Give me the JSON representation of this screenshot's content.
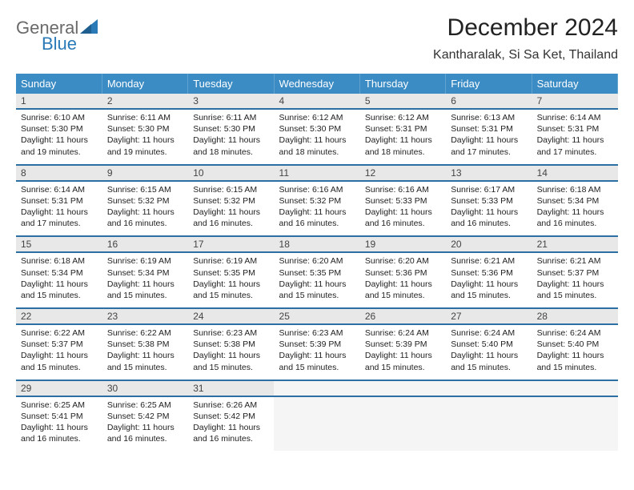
{
  "logo": {
    "general": "General",
    "blue": "Blue",
    "sail_color": "#2a7ab8"
  },
  "title": "December 2024",
  "location": "Kantharalak, Si Sa Ket, Thailand",
  "header_bg": "#3b8bc4",
  "rule_color": "#2b6fa3",
  "daynum_bg": "#e8e8e8",
  "weekdays": [
    "Sunday",
    "Monday",
    "Tuesday",
    "Wednesday",
    "Thursday",
    "Friday",
    "Saturday"
  ],
  "weeks": [
    [
      {
        "day": "1",
        "sunrise": "Sunrise: 6:10 AM",
        "sunset": "Sunset: 5:30 PM",
        "daylight": "Daylight: 11 hours and 19 minutes."
      },
      {
        "day": "2",
        "sunrise": "Sunrise: 6:11 AM",
        "sunset": "Sunset: 5:30 PM",
        "daylight": "Daylight: 11 hours and 19 minutes."
      },
      {
        "day": "3",
        "sunrise": "Sunrise: 6:11 AM",
        "sunset": "Sunset: 5:30 PM",
        "daylight": "Daylight: 11 hours and 18 minutes."
      },
      {
        "day": "4",
        "sunrise": "Sunrise: 6:12 AM",
        "sunset": "Sunset: 5:30 PM",
        "daylight": "Daylight: 11 hours and 18 minutes."
      },
      {
        "day": "5",
        "sunrise": "Sunrise: 6:12 AM",
        "sunset": "Sunset: 5:31 PM",
        "daylight": "Daylight: 11 hours and 18 minutes."
      },
      {
        "day": "6",
        "sunrise": "Sunrise: 6:13 AM",
        "sunset": "Sunset: 5:31 PM",
        "daylight": "Daylight: 11 hours and 17 minutes."
      },
      {
        "day": "7",
        "sunrise": "Sunrise: 6:14 AM",
        "sunset": "Sunset: 5:31 PM",
        "daylight": "Daylight: 11 hours and 17 minutes."
      }
    ],
    [
      {
        "day": "8",
        "sunrise": "Sunrise: 6:14 AM",
        "sunset": "Sunset: 5:31 PM",
        "daylight": "Daylight: 11 hours and 17 minutes."
      },
      {
        "day": "9",
        "sunrise": "Sunrise: 6:15 AM",
        "sunset": "Sunset: 5:32 PM",
        "daylight": "Daylight: 11 hours and 16 minutes."
      },
      {
        "day": "10",
        "sunrise": "Sunrise: 6:15 AM",
        "sunset": "Sunset: 5:32 PM",
        "daylight": "Daylight: 11 hours and 16 minutes."
      },
      {
        "day": "11",
        "sunrise": "Sunrise: 6:16 AM",
        "sunset": "Sunset: 5:32 PM",
        "daylight": "Daylight: 11 hours and 16 minutes."
      },
      {
        "day": "12",
        "sunrise": "Sunrise: 6:16 AM",
        "sunset": "Sunset: 5:33 PM",
        "daylight": "Daylight: 11 hours and 16 minutes."
      },
      {
        "day": "13",
        "sunrise": "Sunrise: 6:17 AM",
        "sunset": "Sunset: 5:33 PM",
        "daylight": "Daylight: 11 hours and 16 minutes."
      },
      {
        "day": "14",
        "sunrise": "Sunrise: 6:18 AM",
        "sunset": "Sunset: 5:34 PM",
        "daylight": "Daylight: 11 hours and 16 minutes."
      }
    ],
    [
      {
        "day": "15",
        "sunrise": "Sunrise: 6:18 AM",
        "sunset": "Sunset: 5:34 PM",
        "daylight": "Daylight: 11 hours and 15 minutes."
      },
      {
        "day": "16",
        "sunrise": "Sunrise: 6:19 AM",
        "sunset": "Sunset: 5:34 PM",
        "daylight": "Daylight: 11 hours and 15 minutes."
      },
      {
        "day": "17",
        "sunrise": "Sunrise: 6:19 AM",
        "sunset": "Sunset: 5:35 PM",
        "daylight": "Daylight: 11 hours and 15 minutes."
      },
      {
        "day": "18",
        "sunrise": "Sunrise: 6:20 AM",
        "sunset": "Sunset: 5:35 PM",
        "daylight": "Daylight: 11 hours and 15 minutes."
      },
      {
        "day": "19",
        "sunrise": "Sunrise: 6:20 AM",
        "sunset": "Sunset: 5:36 PM",
        "daylight": "Daylight: 11 hours and 15 minutes."
      },
      {
        "day": "20",
        "sunrise": "Sunrise: 6:21 AM",
        "sunset": "Sunset: 5:36 PM",
        "daylight": "Daylight: 11 hours and 15 minutes."
      },
      {
        "day": "21",
        "sunrise": "Sunrise: 6:21 AM",
        "sunset": "Sunset: 5:37 PM",
        "daylight": "Daylight: 11 hours and 15 minutes."
      }
    ],
    [
      {
        "day": "22",
        "sunrise": "Sunrise: 6:22 AM",
        "sunset": "Sunset: 5:37 PM",
        "daylight": "Daylight: 11 hours and 15 minutes."
      },
      {
        "day": "23",
        "sunrise": "Sunrise: 6:22 AM",
        "sunset": "Sunset: 5:38 PM",
        "daylight": "Daylight: 11 hours and 15 minutes."
      },
      {
        "day": "24",
        "sunrise": "Sunrise: 6:23 AM",
        "sunset": "Sunset: 5:38 PM",
        "daylight": "Daylight: 11 hours and 15 minutes."
      },
      {
        "day": "25",
        "sunrise": "Sunrise: 6:23 AM",
        "sunset": "Sunset: 5:39 PM",
        "daylight": "Daylight: 11 hours and 15 minutes."
      },
      {
        "day": "26",
        "sunrise": "Sunrise: 6:24 AM",
        "sunset": "Sunset: 5:39 PM",
        "daylight": "Daylight: 11 hours and 15 minutes."
      },
      {
        "day": "27",
        "sunrise": "Sunrise: 6:24 AM",
        "sunset": "Sunset: 5:40 PM",
        "daylight": "Daylight: 11 hours and 15 minutes."
      },
      {
        "day": "28",
        "sunrise": "Sunrise: 6:24 AM",
        "sunset": "Sunset: 5:40 PM",
        "daylight": "Daylight: 11 hours and 15 minutes."
      }
    ],
    [
      {
        "day": "29",
        "sunrise": "Sunrise: 6:25 AM",
        "sunset": "Sunset: 5:41 PM",
        "daylight": "Daylight: 11 hours and 16 minutes."
      },
      {
        "day": "30",
        "sunrise": "Sunrise: 6:25 AM",
        "sunset": "Sunset: 5:42 PM",
        "daylight": "Daylight: 11 hours and 16 minutes."
      },
      {
        "day": "31",
        "sunrise": "Sunrise: 6:26 AM",
        "sunset": "Sunset: 5:42 PM",
        "daylight": "Daylight: 11 hours and 16 minutes."
      },
      null,
      null,
      null,
      null
    ]
  ]
}
